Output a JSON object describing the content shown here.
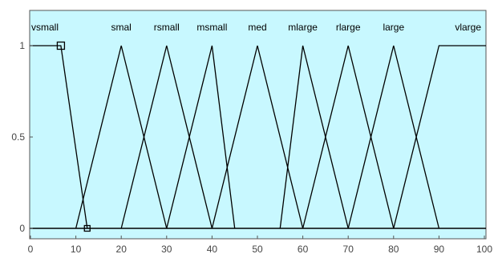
{
  "chart_data": {
    "type": "line",
    "title": "",
    "xlabel": "",
    "ylabel": "",
    "xlim": [
      0,
      100
    ],
    "ylim": [
      0,
      1
    ],
    "x_ticks": [
      0,
      10,
      20,
      30,
      40,
      50,
      60,
      70,
      80,
      90,
      100
    ],
    "y_ticks": [
      0,
      0.5,
      1
    ],
    "grid": false,
    "plot_background": "#c8f8ff",
    "line_color": "#000000",
    "series": [
      {
        "name": "vsmall",
        "points": [
          [
            -2,
            1
          ],
          [
            6.7,
            1
          ],
          [
            12.5,
            0
          ]
        ]
      },
      {
        "name": "smal",
        "points": [
          [
            10,
            0
          ],
          [
            20,
            1
          ],
          [
            30,
            0
          ]
        ]
      },
      {
        "name": "rsmall",
        "points": [
          [
            20,
            0
          ],
          [
            30,
            1
          ],
          [
            40,
            0
          ]
        ]
      },
      {
        "name": "msmall",
        "points": [
          [
            30,
            0
          ],
          [
            40,
            1
          ],
          [
            45,
            0
          ]
        ]
      },
      {
        "name": "med",
        "points": [
          [
            40,
            0
          ],
          [
            50,
            1
          ],
          [
            60,
            0
          ]
        ]
      },
      {
        "name": "mlarge",
        "points": [
          [
            55,
            0
          ],
          [
            60,
            1
          ],
          [
            70,
            0
          ]
        ]
      },
      {
        "name": "rlarge",
        "points": [
          [
            60,
            0
          ],
          [
            70,
            1
          ],
          [
            80,
            0
          ]
        ]
      },
      {
        "name": "large",
        "points": [
          [
            70,
            0
          ],
          [
            80,
            1
          ],
          [
            90,
            0
          ]
        ]
      },
      {
        "name": "vlarge",
        "points": [
          [
            80,
            0
          ],
          [
            90,
            1
          ],
          [
            102,
            1
          ]
        ]
      }
    ],
    "markers": [
      [
        6.7,
        1
      ],
      [
        12.5,
        0
      ]
    ]
  }
}
